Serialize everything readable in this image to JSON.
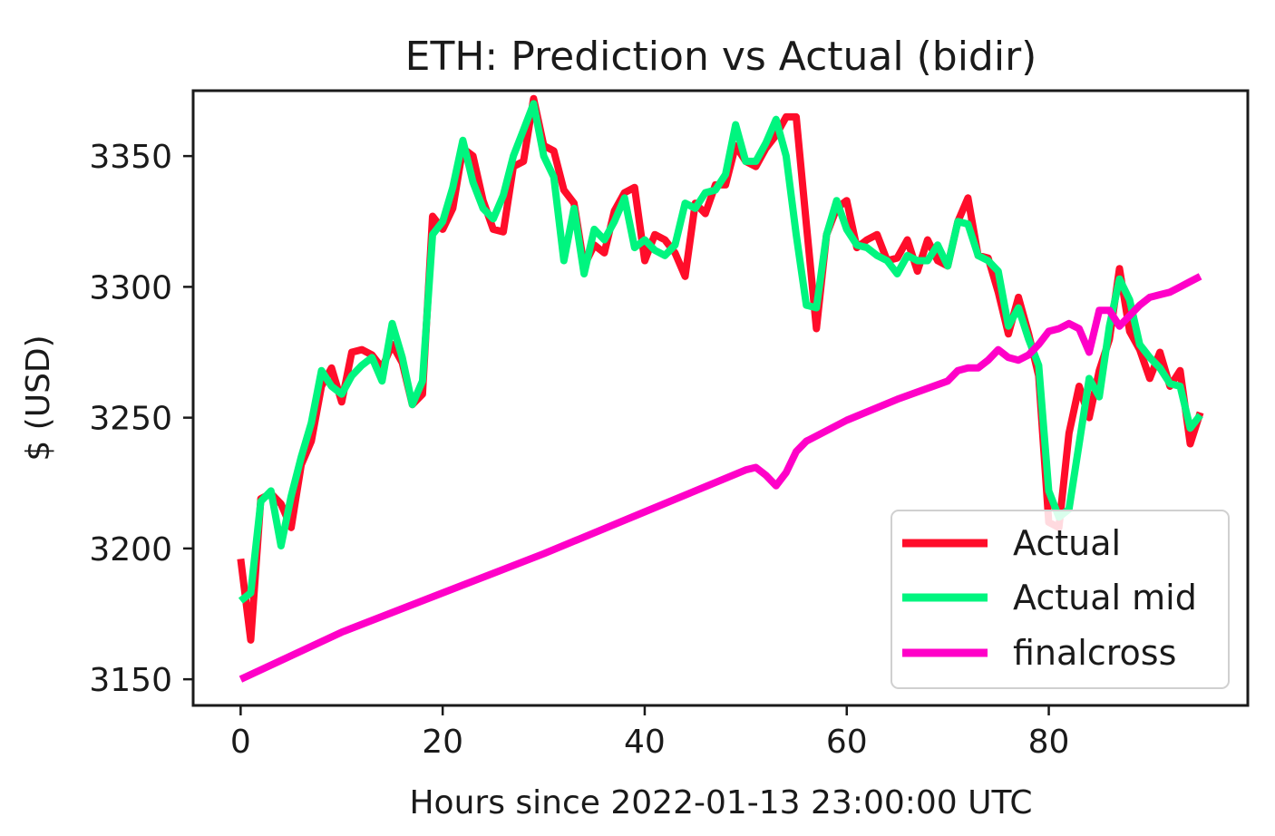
{
  "chart_data": {
    "type": "line",
    "title": "ETH: Prediction vs Actual (bidir)",
    "xlabel": "Hours since 2022-01-13 23:00:00 UTC",
    "ylabel": "$ (USD)",
    "xlim": [
      -4.7,
      99.7
    ],
    "ylim": [
      3140,
      3375
    ],
    "xticks": [
      0,
      20,
      40,
      60,
      80
    ],
    "yticks": [
      3150,
      3200,
      3250,
      3300,
      3350
    ],
    "grid": false,
    "legend_position": "lower-right",
    "series": [
      {
        "name": "Actual",
        "color": "#ff0d2a",
        "x": [
          0,
          1,
          2,
          3,
          4,
          5,
          6,
          7,
          8,
          9,
          10,
          11,
          12,
          13,
          14,
          15,
          16,
          17,
          18,
          19,
          20,
          21,
          22,
          23,
          24,
          25,
          26,
          27,
          28,
          29,
          30,
          31,
          32,
          33,
          34,
          35,
          36,
          37,
          38,
          39,
          40,
          41,
          42,
          43,
          44,
          45,
          46,
          47,
          48,
          49,
          50,
          51,
          52,
          53,
          54,
          55,
          56,
          57,
          58,
          59,
          60,
          61,
          62,
          63,
          64,
          65,
          66,
          67,
          68,
          69,
          70,
          71,
          72,
          73,
          74,
          75,
          76,
          77,
          78,
          79,
          80,
          81,
          82,
          83,
          84,
          85,
          86,
          87,
          88,
          89,
          90,
          91,
          92,
          93,
          94,
          95
        ],
        "values": [
          3196,
          3165,
          3219,
          3221,
          3217,
          3208,
          3232,
          3241,
          3262,
          3269,
          3256,
          3275,
          3276,
          3274,
          3269,
          3278,
          3271,
          3255,
          3259,
          3327,
          3322,
          3330,
          3353,
          3350,
          3333,
          3322,
          3321,
          3346,
          3348,
          3372,
          3354,
          3352,
          3337,
          3332,
          3308,
          3316,
          3313,
          3329,
          3336,
          3338,
          3310,
          3320,
          3318,
          3313,
          3304,
          3332,
          3328,
          3339,
          3339,
          3354,
          3348,
          3346,
          3353,
          3358,
          3365,
          3365,
          3324,
          3284,
          3320,
          3330,
          3333,
          3315,
          3318,
          3320,
          3310,
          3311,
          3318,
          3306,
          3318,
          3310,
          3308,
          3325,
          3334,
          3312,
          3311,
          3298,
          3282,
          3296,
          3282,
          3266,
          3210,
          3208,
          3244,
          3262,
          3250,
          3268,
          3280,
          3307,
          3283,
          3276,
          3265,
          3275,
          3262,
          3268,
          3240,
          3252
        ]
      },
      {
        "name": "Actual mid",
        "color": "#00f57f",
        "x": [
          0,
          1,
          2,
          3,
          4,
          5,
          6,
          7,
          8,
          9,
          10,
          11,
          12,
          13,
          14,
          15,
          16,
          17,
          18,
          19,
          20,
          21,
          22,
          23,
          24,
          25,
          26,
          27,
          28,
          29,
          30,
          31,
          32,
          33,
          34,
          35,
          36,
          37,
          38,
          39,
          40,
          41,
          42,
          43,
          44,
          45,
          46,
          47,
          48,
          49,
          50,
          51,
          52,
          53,
          54,
          55,
          56,
          57,
          58,
          59,
          60,
          61,
          62,
          63,
          64,
          65,
          66,
          67,
          68,
          69,
          70,
          71,
          72,
          73,
          74,
          75,
          76,
          77,
          78,
          79,
          80,
          81,
          82,
          83,
          84,
          85,
          86,
          87,
          88,
          89,
          90,
          91,
          92,
          93,
          94,
          95
        ],
        "values": [
          3180,
          3183,
          3218,
          3222,
          3201,
          3220,
          3235,
          3248,
          3268,
          3262,
          3259,
          3266,
          3270,
          3273,
          3264,
          3286,
          3273,
          3255,
          3264,
          3320,
          3325,
          3338,
          3356,
          3340,
          3330,
          3326,
          3335,
          3350,
          3360,
          3370,
          3350,
          3342,
          3310,
          3330,
          3305,
          3322,
          3318,
          3325,
          3334,
          3315,
          3318,
          3314,
          3312,
          3316,
          3332,
          3330,
          3336,
          3337,
          3343,
          3362,
          3348,
          3348,
          3355,
          3364,
          3350,
          3320,
          3293,
          3292,
          3320,
          3333,
          3322,
          3316,
          3315,
          3312,
          3310,
          3305,
          3312,
          3310,
          3310,
          3316,
          3308,
          3325,
          3324,
          3312,
          3310,
          3306,
          3285,
          3292,
          3280,
          3270,
          3222,
          3212,
          3215,
          3240,
          3265,
          3258,
          3285,
          3303,
          3295,
          3278,
          3273,
          3269,
          3263,
          3262,
          3246,
          3251
        ]
      },
      {
        "name": "finalcross",
        "color": "#ff00c8",
        "x": [
          0,
          10,
          20,
          30,
          40,
          50,
          51,
          52,
          53,
          54,
          55,
          56,
          60,
          65,
          70,
          71,
          72,
          73,
          74,
          75,
          76,
          77,
          78,
          79,
          80,
          81,
          82,
          83,
          84,
          85,
          86,
          87,
          88,
          89,
          90,
          91,
          92,
          93,
          94,
          95
        ],
        "values": [
          3150,
          3168,
          3183,
          3198,
          3214,
          3230,
          3231,
          3228,
          3224,
          3229,
          3237,
          3241,
          3249,
          3257,
          3264,
          3268,
          3269,
          3269,
          3272,
          3276,
          3273,
          3272,
          3274,
          3278,
          3283,
          3284,
          3286,
          3284,
          3275,
          3291,
          3291,
          3285,
          3289,
          3293,
          3296,
          3297,
          3298,
          3300,
          3302,
          3304
        ]
      }
    ]
  }
}
